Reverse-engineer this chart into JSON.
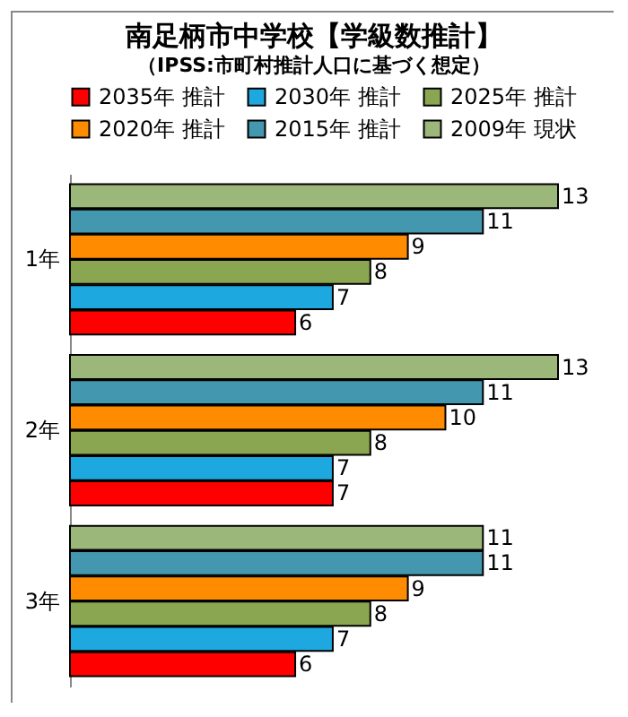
{
  "chart_data": {
    "type": "bar",
    "orientation": "horizontal",
    "title": "南足柄市中学校【学級数推計】",
    "subtitle": "（IPSS:市町村推計人口に基づく想定）",
    "categories": [
      "1年",
      "2年",
      "3年"
    ],
    "series": [
      {
        "name": "2035年 推計",
        "color": "#ff0000",
        "values": [
          6,
          7,
          6
        ]
      },
      {
        "name": "2030年 推計",
        "color": "#1ea8e0",
        "values": [
          7,
          7,
          7
        ]
      },
      {
        "name": "2025年 推計",
        "color": "#8aa650",
        "values": [
          8,
          8,
          8
        ]
      },
      {
        "name": "2020年 推計",
        "color": "#ff8c00",
        "values": [
          9,
          10,
          9
        ]
      },
      {
        "name": "2015年 推計",
        "color": "#4397ae",
        "values": [
          11,
          11,
          11
        ]
      },
      {
        "name": "2009年 現状",
        "color": "#9bb87a",
        "values": [
          13,
          13,
          11
        ]
      }
    ],
    "data_labels": true,
    "legend": "top",
    "tick_labels": "y"
  }
}
